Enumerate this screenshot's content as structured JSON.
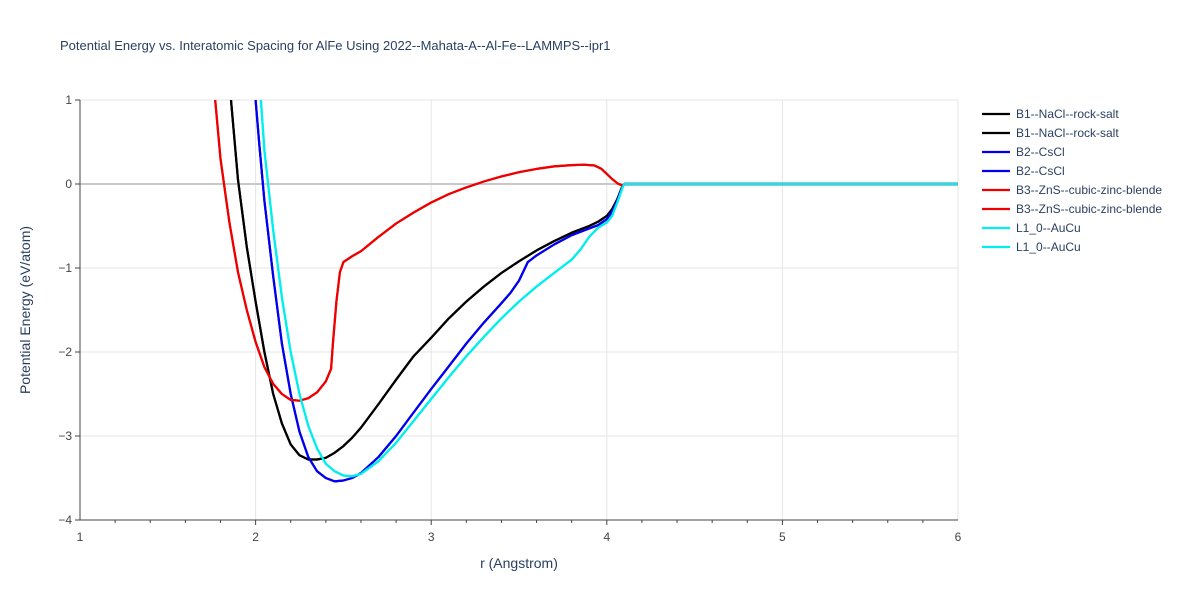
{
  "chart_data": {
    "type": "line",
    "title": "Potential Energy vs. Interatomic Spacing for AlFe Using 2022--Mahata-A--Al-Fe--LAMMPS--ipr1",
    "xlabel": "r (Angstrom)",
    "ylabel": "Potential Energy (eV/atom)",
    "xlim": [
      1,
      6
    ],
    "ylim": [
      -4,
      1
    ],
    "xticks": [
      1,
      2,
      3,
      4,
      5,
      6
    ],
    "xtick_labels": [
      "1",
      "2",
      "3",
      "4",
      "5",
      "6"
    ],
    "yticks": [
      1,
      0,
      -1,
      -2,
      -3,
      -4
    ],
    "ytick_labels": [
      "1",
      "0",
      "−1",
      "−2",
      "−3",
      "−4"
    ],
    "grid": true,
    "legend_position": "right",
    "series": [
      {
        "name": "B1--NaCl--rock-salt",
        "color": "#000000",
        "x": [
          1.86,
          1.9,
          1.95,
          2.0,
          2.05,
          2.1,
          2.15,
          2.2,
          2.25,
          2.3,
          2.35,
          2.4,
          2.45,
          2.5,
          2.55,
          2.6,
          2.7,
          2.8,
          2.9,
          3.0,
          3.1,
          3.2,
          3.3,
          3.4,
          3.5,
          3.6,
          3.7,
          3.8,
          3.9,
          3.95,
          4.0,
          4.03,
          4.06,
          4.09,
          4.1,
          4.2,
          5.0,
          6.0
        ],
        "y": [
          1.0,
          0.05,
          -0.75,
          -1.4,
          -2.0,
          -2.5,
          -2.85,
          -3.1,
          -3.23,
          -3.28,
          -3.28,
          -3.26,
          -3.2,
          -3.12,
          -3.02,
          -2.9,
          -2.62,
          -2.33,
          -2.05,
          -1.83,
          -1.6,
          -1.4,
          -1.22,
          -1.06,
          -0.92,
          -0.79,
          -0.68,
          -0.58,
          -0.5,
          -0.45,
          -0.38,
          -0.3,
          -0.18,
          -0.02,
          0.0,
          0.0,
          0.0,
          0.0
        ]
      },
      {
        "name": "B1--NaCl--rock-salt",
        "color": "#000000",
        "x": [
          1.86,
          1.9,
          1.95,
          2.0,
          2.05,
          2.1,
          2.15,
          2.2,
          2.25,
          2.3,
          2.35,
          2.4,
          2.45,
          2.5,
          2.55,
          2.6,
          2.7,
          2.8,
          2.9,
          3.0,
          3.1,
          3.2,
          3.3,
          3.4,
          3.5,
          3.6,
          3.7,
          3.8,
          3.9,
          3.95,
          4.0,
          4.03,
          4.06,
          4.09,
          4.1,
          4.2,
          5.0,
          6.0
        ],
        "y": [
          1.0,
          0.05,
          -0.75,
          -1.4,
          -2.0,
          -2.5,
          -2.85,
          -3.1,
          -3.23,
          -3.28,
          -3.28,
          -3.26,
          -3.2,
          -3.12,
          -3.02,
          -2.9,
          -2.62,
          -2.33,
          -2.05,
          -1.83,
          -1.6,
          -1.4,
          -1.22,
          -1.06,
          -0.92,
          -0.79,
          -0.68,
          -0.58,
          -0.5,
          -0.45,
          -0.38,
          -0.3,
          -0.18,
          -0.02,
          0.0,
          0.0,
          0.0,
          0.0
        ]
      },
      {
        "name": "B2--CsCl",
        "color": "#0000ee",
        "x": [
          2.0,
          2.02,
          2.05,
          2.1,
          2.15,
          2.2,
          2.25,
          2.3,
          2.35,
          2.4,
          2.45,
          2.5,
          2.55,
          2.6,
          2.7,
          2.8,
          2.9,
          3.0,
          3.1,
          3.2,
          3.3,
          3.4,
          3.45,
          3.5,
          3.55,
          3.6,
          3.7,
          3.8,
          3.9,
          3.95,
          4.0,
          4.03,
          4.06,
          4.09,
          4.1,
          4.2,
          5.0,
          6.0
        ],
        "y": [
          1.0,
          0.5,
          -0.2,
          -1.1,
          -1.9,
          -2.5,
          -2.95,
          -3.25,
          -3.42,
          -3.5,
          -3.54,
          -3.53,
          -3.5,
          -3.44,
          -3.25,
          -3.0,
          -2.72,
          -2.44,
          -2.17,
          -1.9,
          -1.65,
          -1.42,
          -1.3,
          -1.15,
          -0.93,
          -0.85,
          -0.72,
          -0.61,
          -0.53,
          -0.49,
          -0.42,
          -0.33,
          -0.2,
          -0.03,
          0.0,
          0.0,
          0.0,
          0.0
        ]
      },
      {
        "name": "B2--CsCl",
        "color": "#0000ee",
        "x": [
          2.0,
          2.02,
          2.05,
          2.1,
          2.15,
          2.2,
          2.25,
          2.3,
          2.35,
          2.4,
          2.45,
          2.5,
          2.55,
          2.6,
          2.7,
          2.8,
          2.9,
          3.0,
          3.1,
          3.2,
          3.3,
          3.4,
          3.45,
          3.5,
          3.55,
          3.6,
          3.7,
          3.8,
          3.9,
          3.95,
          4.0,
          4.03,
          4.06,
          4.09,
          4.1,
          4.2,
          5.0,
          6.0
        ],
        "y": [
          1.0,
          0.5,
          -0.2,
          -1.1,
          -1.9,
          -2.5,
          -2.95,
          -3.25,
          -3.42,
          -3.5,
          -3.54,
          -3.53,
          -3.5,
          -3.44,
          -3.25,
          -3.0,
          -2.72,
          -2.44,
          -2.17,
          -1.9,
          -1.65,
          -1.42,
          -1.3,
          -1.15,
          -0.93,
          -0.85,
          -0.72,
          -0.61,
          -0.53,
          -0.49,
          -0.42,
          -0.33,
          -0.2,
          -0.03,
          0.0,
          0.0,
          0.0,
          0.0
        ]
      },
      {
        "name": "B3--ZnS--cubic-zinc-blende",
        "color": "#ee0000",
        "x": [
          1.77,
          1.8,
          1.85,
          1.9,
          1.95,
          2.0,
          2.05,
          2.1,
          2.15,
          2.2,
          2.25,
          2.3,
          2.35,
          2.4,
          2.43,
          2.44,
          2.46,
          2.48,
          2.5,
          2.55,
          2.6,
          2.7,
          2.8,
          2.9,
          3.0,
          3.1,
          3.2,
          3.3,
          3.4,
          3.5,
          3.6,
          3.7,
          3.8,
          3.87,
          3.93,
          3.97,
          4.0,
          4.03,
          4.06,
          4.09,
          4.1,
          4.2,
          5.0,
          6.0
        ],
        "y": [
          1.0,
          0.3,
          -0.45,
          -1.05,
          -1.5,
          -1.88,
          -2.18,
          -2.38,
          -2.5,
          -2.57,
          -2.58,
          -2.55,
          -2.48,
          -2.35,
          -2.2,
          -1.9,
          -1.4,
          -1.05,
          -0.93,
          -0.86,
          -0.8,
          -0.63,
          -0.47,
          -0.34,
          -0.22,
          -0.12,
          -0.04,
          0.03,
          0.09,
          0.14,
          0.18,
          0.21,
          0.225,
          0.23,
          0.22,
          0.18,
          0.12,
          0.06,
          0.01,
          -0.02,
          0.0,
          0.0,
          0.0,
          0.0
        ]
      },
      {
        "name": "B3--ZnS--cubic-zinc-blende",
        "color": "#ee0000",
        "x": [
          1.77,
          1.8,
          1.85,
          1.9,
          1.95,
          2.0,
          2.05,
          2.1,
          2.15,
          2.2,
          2.25,
          2.3,
          2.35,
          2.4,
          2.43,
          2.44,
          2.46,
          2.48,
          2.5,
          2.55,
          2.6,
          2.7,
          2.8,
          2.9,
          3.0,
          3.1,
          3.2,
          3.3,
          3.4,
          3.5,
          3.6,
          3.7,
          3.8,
          3.87,
          3.93,
          3.97,
          4.0,
          4.03,
          4.06,
          4.09,
          4.1,
          4.2,
          5.0,
          6.0
        ],
        "y": [
          1.0,
          0.3,
          -0.45,
          -1.05,
          -1.5,
          -1.88,
          -2.18,
          -2.38,
          -2.5,
          -2.57,
          -2.58,
          -2.55,
          -2.48,
          -2.35,
          -2.2,
          -1.9,
          -1.4,
          -1.05,
          -0.93,
          -0.86,
          -0.8,
          -0.63,
          -0.47,
          -0.34,
          -0.22,
          -0.12,
          -0.04,
          0.03,
          0.09,
          0.14,
          0.18,
          0.21,
          0.225,
          0.23,
          0.22,
          0.18,
          0.12,
          0.06,
          0.01,
          -0.02,
          0.0,
          0.0,
          0.0,
          0.0
        ]
      },
      {
        "name": "L1_0--AuCu",
        "color": "#00eeee",
        "x": [
          2.03,
          2.05,
          2.1,
          2.15,
          2.2,
          2.25,
          2.3,
          2.35,
          2.4,
          2.45,
          2.5,
          2.55,
          2.6,
          2.7,
          2.8,
          2.9,
          3.0,
          3.1,
          3.2,
          3.3,
          3.4,
          3.5,
          3.6,
          3.7,
          3.8,
          3.85,
          3.9,
          3.95,
          4.0,
          4.03,
          4.06,
          4.09,
          4.1,
          4.2,
          5.0,
          6.0
        ],
        "y": [
          1.0,
          0.4,
          -0.55,
          -1.35,
          -2.0,
          -2.5,
          -2.88,
          -3.15,
          -3.33,
          -3.42,
          -3.47,
          -3.48,
          -3.45,
          -3.3,
          -3.08,
          -2.82,
          -2.56,
          -2.3,
          -2.05,
          -1.82,
          -1.6,
          -1.4,
          -1.22,
          -1.06,
          -0.9,
          -0.78,
          -0.63,
          -0.52,
          -0.46,
          -0.38,
          -0.22,
          -0.04,
          0.0,
          0.0,
          0.0,
          0.0
        ]
      },
      {
        "name": "L1_0--AuCu",
        "color": "#00eeee",
        "x": [
          2.03,
          2.05,
          2.1,
          2.15,
          2.2,
          2.25,
          2.3,
          2.35,
          2.4,
          2.45,
          2.5,
          2.55,
          2.6,
          2.7,
          2.8,
          2.9,
          3.0,
          3.1,
          3.2,
          3.3,
          3.4,
          3.5,
          3.6,
          3.7,
          3.8,
          3.85,
          3.9,
          3.95,
          4.0,
          4.03,
          4.06,
          4.09,
          4.1,
          4.2,
          5.0,
          6.0
        ],
        "y": [
          1.0,
          0.4,
          -0.55,
          -1.35,
          -2.0,
          -2.5,
          -2.88,
          -3.15,
          -3.33,
          -3.42,
          -3.47,
          -3.48,
          -3.45,
          -3.3,
          -3.08,
          -2.82,
          -2.56,
          -2.3,
          -2.05,
          -1.82,
          -1.6,
          -1.4,
          -1.22,
          -1.06,
          -0.9,
          -0.78,
          -0.63,
          -0.52,
          -0.46,
          -0.38,
          -0.22,
          -0.04,
          0.0,
          0.0,
          0.0,
          0.0
        ]
      }
    ]
  }
}
